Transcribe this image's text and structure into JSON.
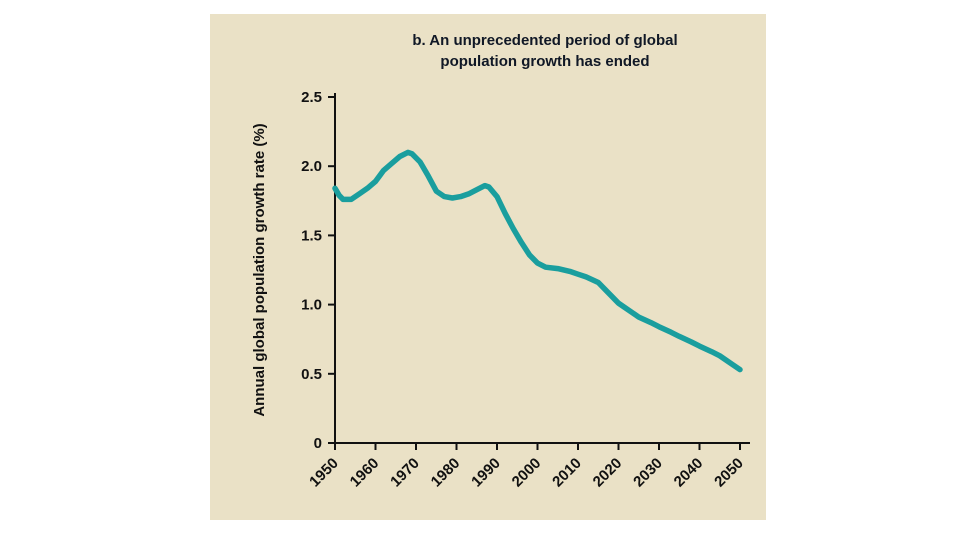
{
  "page": {
    "background": "#ffffff"
  },
  "panel": {
    "background": "#eae1c6"
  },
  "chart_data": {
    "type": "line",
    "title": "b. An unprecedented period of global population growth has ended",
    "title_lines": [
      "b. An unprecedented period of global",
      "population growth has ended"
    ],
    "ylabel": "Annual global population growth rate (%)",
    "xlabel": "",
    "xlim": [
      1950,
      2050
    ],
    "ylim": [
      0,
      2.5
    ],
    "x_ticks": [
      1950,
      1960,
      1970,
      1980,
      1990,
      2000,
      2010,
      2020,
      2030,
      2040,
      2050
    ],
    "y_ticks": [
      0,
      0.5,
      1.0,
      1.5,
      2.0,
      2.5
    ],
    "y_tick_labels": [
      "0",
      "0.5",
      "1.0",
      "1.5",
      "2.0",
      "2.5"
    ],
    "grid": false,
    "legend": "none",
    "line_color": "#1a9e9e",
    "axis_color": "#111111",
    "text_color": "#111111",
    "series": [
      {
        "name": "Annual global population growth rate (%)",
        "x": [
          1950,
          1951,
          1952,
          1954,
          1956,
          1958,
          1960,
          1962,
          1964,
          1966,
          1968,
          1969,
          1971,
          1973,
          1975,
          1977,
          1979,
          1981,
          1983,
          1985,
          1987,
          1988,
          1990,
          1992,
          1994,
          1996,
          1998,
          2000,
          2002,
          2005,
          2008,
          2010,
          2012,
          2015,
          2017,
          2020,
          2023,
          2025,
          2028,
          2030,
          2033,
          2035,
          2038,
          2040,
          2043,
          2045,
          2048,
          2050
        ],
        "y": [
          1.84,
          1.79,
          1.76,
          1.76,
          1.8,
          1.84,
          1.89,
          1.97,
          2.02,
          2.07,
          2.1,
          2.09,
          2.03,
          1.93,
          1.82,
          1.78,
          1.77,
          1.78,
          1.8,
          1.83,
          1.86,
          1.85,
          1.78,
          1.66,
          1.55,
          1.45,
          1.36,
          1.3,
          1.27,
          1.26,
          1.24,
          1.22,
          1.2,
          1.16,
          1.1,
          1.01,
          0.95,
          0.91,
          0.87,
          0.84,
          0.8,
          0.77,
          0.73,
          0.7,
          0.66,
          0.63,
          0.57,
          0.53
        ]
      }
    ]
  }
}
